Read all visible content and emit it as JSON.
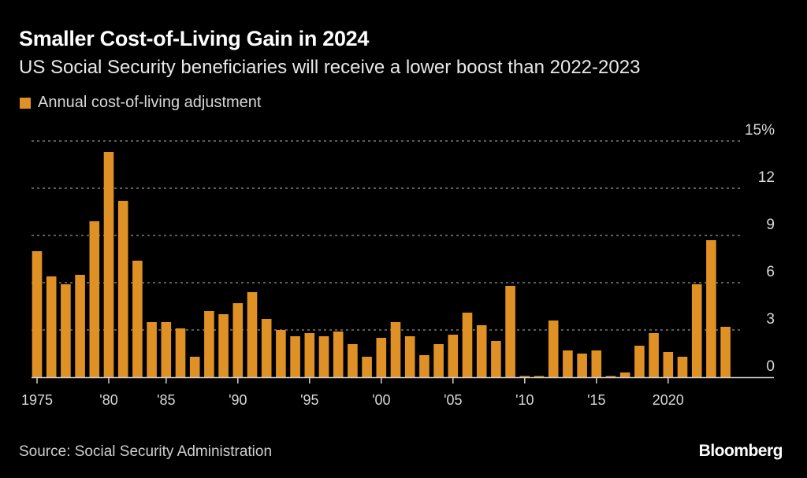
{
  "header": {
    "title": "Smaller Cost-of-Living Gain in 2024",
    "subtitle": "US Social Security beneficiaries will receive a lower boost than 2022-2023"
  },
  "legend": {
    "label": "Annual cost-of-living adjustment",
    "color": "#e09126"
  },
  "footer": {
    "source": "Source: Social Security Administration",
    "logo": "Bloomberg"
  },
  "chart_data": {
    "type": "bar",
    "title": "Smaller Cost-of-Living Gain in 2024",
    "subtitle": "US Social Security beneficiaries will receive a lower boost than 2022-2023",
    "xlabel": "",
    "ylabel": "",
    "ylim": [
      0,
      15
    ],
    "y_ticks": [
      0,
      3,
      6,
      9,
      12,
      15
    ],
    "y_tick_labels": [
      "0",
      "3",
      "6",
      "9",
      "12",
      "15%"
    ],
    "y_axis_position": "right",
    "grid": true,
    "legend_position": "top-left",
    "categories": [
      "1975",
      "1976",
      "1977",
      "1978",
      "1979",
      "1980",
      "1981",
      "1982",
      "1984",
      "1985",
      "1986",
      "1987",
      "1988",
      "1989",
      "1990",
      "1991",
      "1992",
      "1993",
      "1994",
      "1995",
      "1996",
      "1997",
      "1998",
      "1999",
      "2000",
      "2001",
      "2002",
      "2003",
      "2004",
      "2005",
      "2006",
      "2007",
      "2008",
      "2009",
      "2010",
      "2011",
      "2012",
      "2013",
      "2014",
      "2015",
      "2016",
      "2017",
      "2018",
      "2019",
      "2020",
      "2021",
      "2022",
      "2023",
      "2024"
    ],
    "x_tick_labels": [
      {
        "category": "1975",
        "label": "1975"
      },
      {
        "category": "1980",
        "label": "'80"
      },
      {
        "category": "1985",
        "label": "'85"
      },
      {
        "category": "1990",
        "label": "'90"
      },
      {
        "category": "1995",
        "label": "'95"
      },
      {
        "category": "2000",
        "label": "'00"
      },
      {
        "category": "2005",
        "label": "'05"
      },
      {
        "category": "2010",
        "label": "'10"
      },
      {
        "category": "2015",
        "label": "'15"
      },
      {
        "category": "2020",
        "label": "2020"
      }
    ],
    "series": [
      {
        "name": "Annual cost-of-living adjustment",
        "color": "#e09126",
        "values": [
          8.0,
          6.4,
          5.9,
          6.5,
          9.9,
          14.3,
          11.2,
          7.4,
          3.5,
          3.5,
          3.1,
          1.3,
          4.2,
          4.0,
          4.7,
          5.4,
          3.7,
          3.0,
          2.6,
          2.8,
          2.6,
          2.9,
          2.1,
          1.3,
          2.5,
          3.5,
          2.6,
          1.4,
          2.1,
          2.7,
          4.1,
          3.3,
          2.3,
          5.8,
          0,
          0,
          3.6,
          1.7,
          1.5,
          1.7,
          0,
          0.3,
          2.0,
          2.8,
          1.6,
          1.3,
          5.9,
          8.7,
          3.2
        ]
      }
    ]
  }
}
